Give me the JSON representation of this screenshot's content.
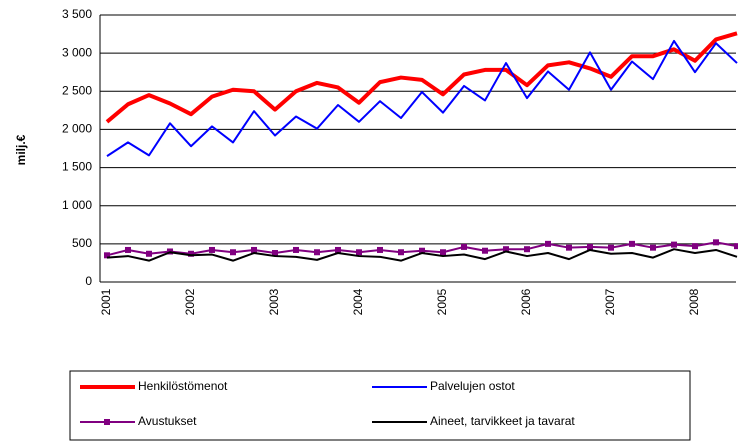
{
  "chart_data": {
    "type": "line",
    "y_label": "milj.€",
    "categories": [
      "2001",
      null,
      null,
      null,
      "2002",
      null,
      null,
      null,
      "2003",
      null,
      null,
      null,
      "2004",
      null,
      null,
      null,
      "2005",
      null,
      null,
      null,
      "2006",
      null,
      null,
      null,
      "2007",
      null,
      null,
      null,
      "2008",
      null,
      null
    ],
    "ylim": [
      0,
      3500
    ],
    "yticks": [
      0,
      500,
      {
        "value": 1000,
        "label": "1 000"
      },
      {
        "value": 1500,
        "label": "1 500"
      },
      {
        "value": 2000,
        "label": "2 000"
      },
      {
        "value": 2500,
        "label": "2 500"
      },
      {
        "value": 3000,
        "label": "3 000"
      },
      {
        "value": 3500,
        "label": "3 500"
      }
    ],
    "grid": true,
    "legend": "bottom",
    "series": [
      {
        "name": "Henkilöstömenot",
        "color": "#ff0000",
        "width": 4,
        "values": [
          2100,
          2330,
          2450,
          2340,
          2200,
          2430,
          2520,
          2500,
          2260,
          2500,
          2610,
          2550,
          2350,
          2620,
          2680,
          2650,
          2460,
          2720,
          2780,
          2780,
          2580,
          2840,
          2880,
          2800,
          2690,
          2960,
          2960,
          3050,
          2900,
          3180,
          3260
        ]
      },
      {
        "name": "Palvelujen ostot",
        "color": "#0000ff",
        "width": 2,
        "values": [
          1650,
          1830,
          1660,
          2080,
          1780,
          2040,
          1830,
          2240,
          1920,
          2170,
          2010,
          2320,
          2100,
          2370,
          2150,
          2490,
          2220,
          2570,
          2380,
          2870,
          2410,
          2760,
          2520,
          3010,
          2520,
          2890,
          2660,
          3160,
          2750,
          3130,
          2870
        ]
      },
      {
        "name": "Avustukset",
        "color": "#800080",
        "width": 2,
        "marker": "square",
        "values": [
          350,
          420,
          370,
          400,
          370,
          420,
          390,
          420,
          380,
          420,
          390,
          420,
          390,
          420,
          390,
          410,
          390,
          460,
          410,
          430,
          430,
          500,
          450,
          460,
          450,
          500,
          450,
          490,
          470,
          520,
          470
        ]
      },
      {
        "name": "Aineet, tarvikkeet ja tavarat",
        "color": "#000000",
        "width": 2,
        "values": [
          320,
          340,
          280,
          390,
          350,
          360,
          280,
          380,
          340,
          330,
          290,
          380,
          340,
          330,
          280,
          380,
          340,
          360,
          300,
          400,
          340,
          380,
          300,
          420,
          370,
          380,
          320,
          430,
          380,
          420,
          330
        ]
      }
    ]
  }
}
